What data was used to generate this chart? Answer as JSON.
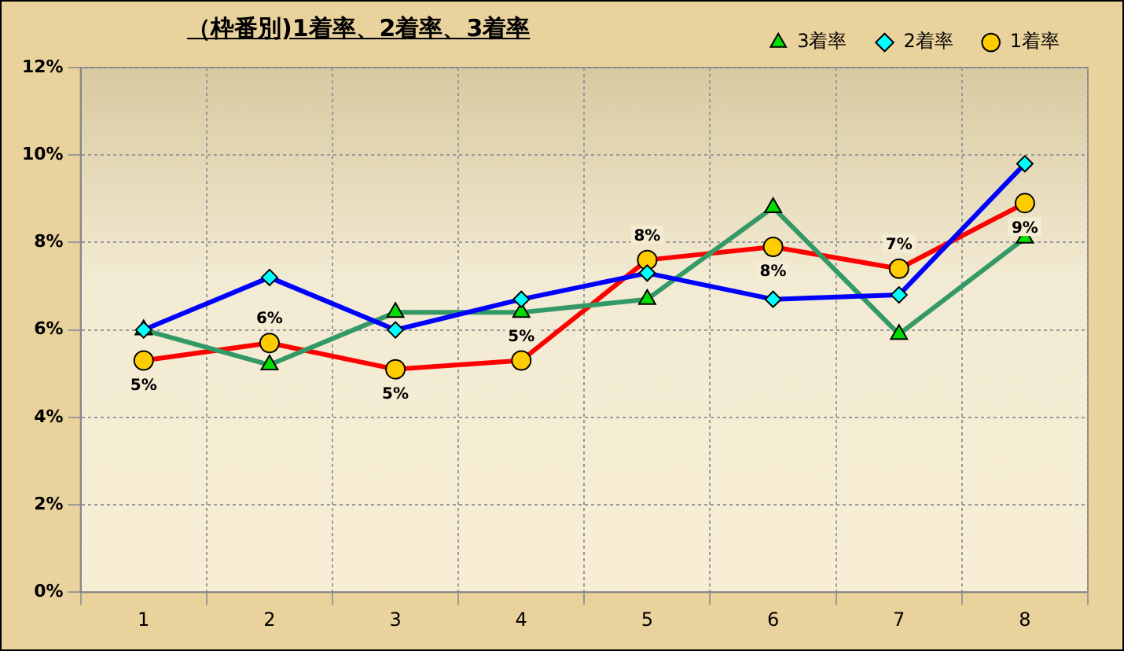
{
  "chart_data": {
    "type": "line",
    "title": "（枠番別)1着率、2着率、3着率",
    "categories": [
      "1",
      "2",
      "3",
      "4",
      "5",
      "6",
      "7",
      "8"
    ],
    "series": [
      {
        "name": "3着率",
        "color": "#339966",
        "marker": "triangle",
        "values": [
          6.0,
          5.2,
          6.4,
          6.4,
          6.7,
          8.8,
          5.9,
          8.1
        ]
      },
      {
        "name": "2着率",
        "color": "#0000ff",
        "marker": "diamond",
        "values": [
          6.0,
          7.2,
          6.0,
          6.7,
          7.3,
          6.7,
          6.8,
          9.8
        ]
      },
      {
        "name": "1着率",
        "color": "#ff0000",
        "marker": "circle",
        "values": [
          5.3,
          5.7,
          5.1,
          5.3,
          7.6,
          7.9,
          7.4,
          8.9
        ],
        "value_labels": [
          "5%",
          "6%",
          "5%",
          "5%",
          "8%",
          "8%",
          "7%",
          "9%"
        ]
      }
    ],
    "ylim": [
      0,
      12
    ],
    "yticks": [
      {
        "value": 0,
        "label": "0%"
      },
      {
        "value": 2,
        "label": "2%"
      },
      {
        "value": 4,
        "label": "4%"
      },
      {
        "value": 6,
        "label": "6%"
      },
      {
        "value": 8,
        "label": "8%"
      },
      {
        "value": 10,
        "label": "10%"
      },
      {
        "value": 12,
        "label": "12%"
      }
    ],
    "grid": true,
    "legend": "top right"
  }
}
